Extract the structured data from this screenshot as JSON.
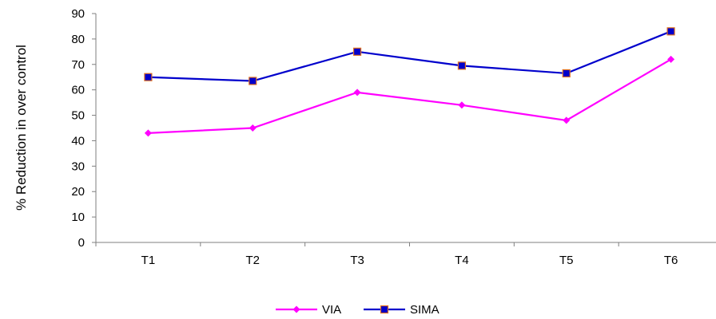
{
  "chart_data": {
    "type": "line",
    "categories": [
      "T1",
      "T2",
      "T3",
      "T4",
      "T5",
      "T6"
    ],
    "series": [
      {
        "name": "VIA",
        "values": [
          43,
          45,
          59,
          54,
          48,
          72
        ],
        "color": "#ff00ff",
        "marker": "diamond"
      },
      {
        "name": "SIMA",
        "values": [
          65,
          63.5,
          75,
          69.5,
          66.5,
          83
        ],
        "color": "#0000cc",
        "marker": "square"
      }
    ],
    "title": "",
    "xlabel": "",
    "ylabel": "% Reduction in over control",
    "ylim": [
      0,
      90
    ],
    "yticks": [
      "0",
      "10",
      "20",
      "30",
      "40",
      "50",
      "60",
      "70",
      "80",
      "90"
    ],
    "grid": false,
    "legend_position": "bottom"
  }
}
